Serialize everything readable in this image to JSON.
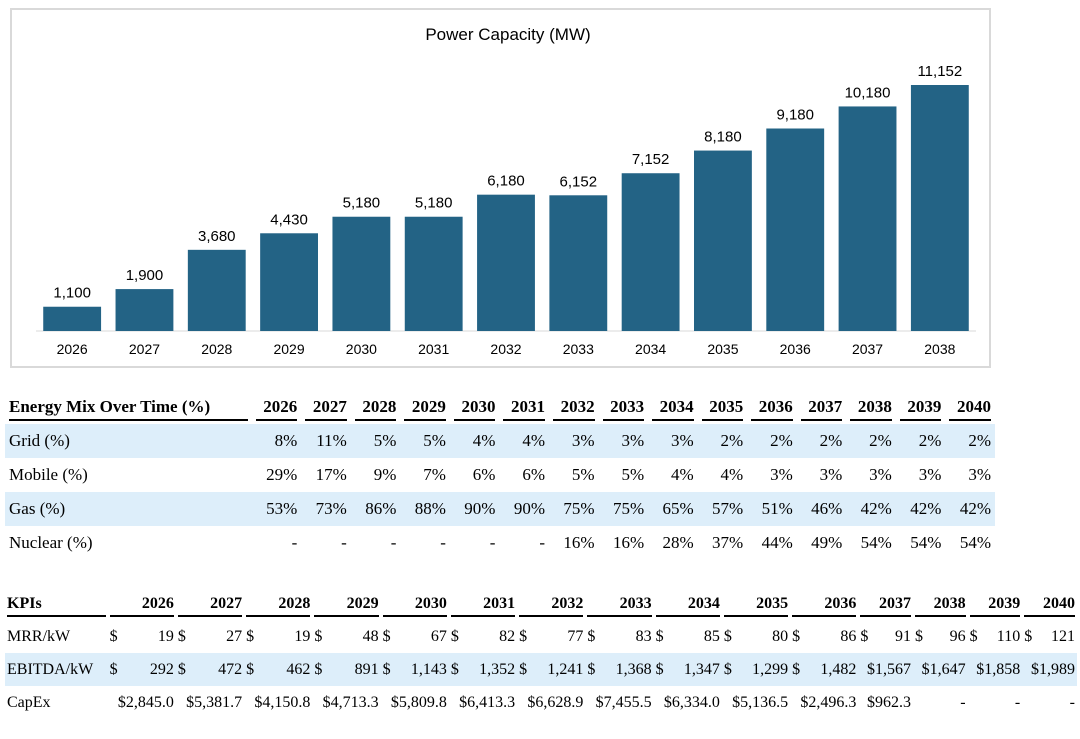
{
  "chart_data": {
    "type": "bar",
    "title": "Power Capacity (MW)",
    "categories": [
      "2026",
      "2027",
      "2028",
      "2029",
      "2030",
      "2031",
      "2032",
      "2033",
      "2034",
      "2035",
      "2036",
      "2037",
      "2038"
    ],
    "values": [
      1100,
      1900,
      3680,
      4430,
      5180,
      5180,
      6180,
      6152,
      7152,
      8180,
      9180,
      10180,
      11152
    ],
    "value_labels": [
      "1,100",
      "1,900",
      "3,680",
      "4,430",
      "5,180",
      "5,180",
      "6,180",
      "6,152",
      "7,152",
      "8,180",
      "9,180",
      "10,180",
      "11,152"
    ],
    "xlabel": "",
    "ylabel": "",
    "ylim": [
      0,
      11152
    ],
    "grid": false,
    "bar_color": "#236385"
  },
  "energy_mix": {
    "header": "Energy Mix Over Time (%)",
    "years": [
      "2026",
      "2027",
      "2028",
      "2029",
      "2030",
      "2031",
      "2032",
      "2033",
      "2034",
      "2035",
      "2036",
      "2037",
      "2038",
      "2039",
      "2040"
    ],
    "rows": [
      {
        "label": "Grid (%)",
        "values": [
          "8%",
          "11%",
          "5%",
          "5%",
          "4%",
          "4%",
          "3%",
          "3%",
          "3%",
          "2%",
          "2%",
          "2%",
          "2%",
          "2%",
          "2%"
        ]
      },
      {
        "label": "Mobile (%)",
        "values": [
          "29%",
          "17%",
          "9%",
          "7%",
          "6%",
          "6%",
          "5%",
          "5%",
          "4%",
          "4%",
          "3%",
          "3%",
          "3%",
          "3%",
          "3%"
        ]
      },
      {
        "label": "Gas (%)",
        "values": [
          "53%",
          "73%",
          "86%",
          "88%",
          "90%",
          "90%",
          "75%",
          "75%",
          "65%",
          "57%",
          "51%",
          "46%",
          "42%",
          "42%",
          "42%"
        ]
      },
      {
        "label": "Nuclear (%)",
        "values": [
          "-",
          "-",
          "-",
          "-",
          "-",
          "-",
          "16%",
          "16%",
          "28%",
          "37%",
          "44%",
          "49%",
          "54%",
          "54%",
          "54%"
        ]
      }
    ],
    "shade_color": "#ddeefa"
  },
  "kpis": {
    "header": "KPIs",
    "years": [
      "2026",
      "2027",
      "2028",
      "2029",
      "2030",
      "2031",
      "2032",
      "2033",
      "2034",
      "2035",
      "2036",
      "2037",
      "2038",
      "2039",
      "2040"
    ],
    "rows": [
      {
        "label": "MRR/kW",
        "cells": [
          {
            "cur": "$",
            "amt": "19"
          },
          {
            "cur": "$",
            "amt": "27"
          },
          {
            "cur": "$",
            "amt": "19"
          },
          {
            "cur": "$",
            "amt": "48"
          },
          {
            "cur": "$",
            "amt": "67"
          },
          {
            "cur": "$",
            "amt": "82"
          },
          {
            "cur": "$",
            "amt": "77"
          },
          {
            "cur": "$",
            "amt": "83"
          },
          {
            "cur": "$",
            "amt": "85"
          },
          {
            "cur": "$",
            "amt": "80"
          },
          {
            "cur": "$",
            "amt": "86"
          },
          {
            "cur": "$",
            "amt": "91"
          },
          {
            "cur": "$",
            "amt": "96"
          },
          {
            "cur": "$",
            "amt": "110"
          },
          {
            "cur": "$",
            "amt": "121"
          }
        ]
      },
      {
        "label": "EBITDA/kW",
        "cells": [
          {
            "cur": "$",
            "amt": "292"
          },
          {
            "cur": "$",
            "amt": "472"
          },
          {
            "cur": "$",
            "amt": "462"
          },
          {
            "cur": "$",
            "amt": "891"
          },
          {
            "cur": "$",
            "amt": "1,143"
          },
          {
            "cur": "$",
            "amt": "1,352"
          },
          {
            "cur": "$",
            "amt": "1,241"
          },
          {
            "cur": "$",
            "amt": "1,368"
          },
          {
            "cur": "$",
            "amt": "1,347"
          },
          {
            "cur": "$",
            "amt": "1,299"
          },
          {
            "cur": "$",
            "amt": "1,482"
          },
          {
            "cur": "",
            "amt": "$1,567"
          },
          {
            "cur": "",
            "amt": "$1,647"
          },
          {
            "cur": "",
            "amt": "$1,858"
          },
          {
            "cur": "",
            "amt": "$1,989"
          }
        ]
      },
      {
        "label": "CapEx",
        "cells": [
          {
            "cur": "",
            "amt": "$2,845.0"
          },
          {
            "cur": "",
            "amt": "$5,381.7"
          },
          {
            "cur": "",
            "amt": "$4,150.8"
          },
          {
            "cur": "",
            "amt": "$4,713.3"
          },
          {
            "cur": "",
            "amt": "$5,809.8"
          },
          {
            "cur": "",
            "amt": "$6,413.3"
          },
          {
            "cur": "",
            "amt": "$6,628.9"
          },
          {
            "cur": "",
            "amt": "$7,455.5"
          },
          {
            "cur": "",
            "amt": "$6,334.0"
          },
          {
            "cur": "",
            "amt": "$5,136.5"
          },
          {
            "cur": "",
            "amt": "$2,496.3"
          },
          {
            "cur": "",
            "amt": "$962.3"
          },
          {
            "cur": "",
            "amt": "-"
          },
          {
            "cur": "",
            "amt": "-"
          },
          {
            "cur": "",
            "amt": "-"
          }
        ]
      }
    ],
    "shade_color": "#ddeefa"
  }
}
